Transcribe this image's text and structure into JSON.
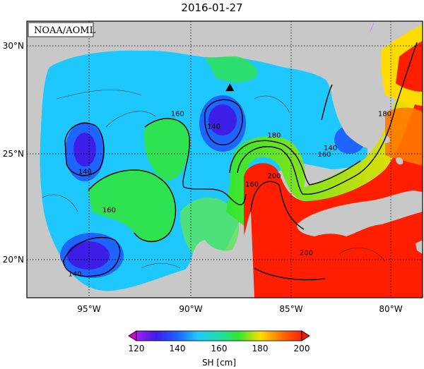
{
  "title": "2016-01-27",
  "credit": "NOAA/AOML",
  "map": {
    "type": "sea-surface-height",
    "lon_range": [
      -98,
      -78
    ],
    "lat_range": [
      18,
      31
    ],
    "x_ticks": [
      "95°W",
      "90°W",
      "85°W",
      "80°W"
    ],
    "y_ticks": [
      "30°N",
      "25°N",
      "20°N"
    ],
    "grid": "dotted",
    "land_color": "#c8c8c8",
    "contour_labels": [
      {
        "text": "160",
        "lon": -90.6,
        "lat": 26.8
      },
      {
        "text": "140",
        "lon": -88.8,
        "lat": 26.2
      },
      {
        "text": "180",
        "lon": -85.8,
        "lat": 25.8
      },
      {
        "text": "140",
        "lon": -95.2,
        "lat": 24.1
      },
      {
        "text": "160",
        "lon": -86.9,
        "lat": 23.5
      },
      {
        "text": "200",
        "lon": -85.8,
        "lat": 23.9
      },
      {
        "text": "160",
        "lon": -83.3,
        "lat": 24.9
      },
      {
        "text": "140",
        "lon": -83.0,
        "lat": 25.2
      },
      {
        "text": "180",
        "lon": -80.3,
        "lat": 26.8
      },
      {
        "text": "160",
        "lon": -94.0,
        "lat": 22.3
      },
      {
        "text": "200",
        "lon": -84.2,
        "lat": 20.3
      },
      {
        "text": "140",
        "lon": -95.7,
        "lat": 19.3
      }
    ],
    "marker": {
      "shape": "triangle",
      "lon": -88.0,
      "lat": 28.1
    }
  },
  "colorbar": {
    "label": "SH [cm]",
    "ticks": [
      "120",
      "140",
      "160",
      "180",
      "200"
    ],
    "range": [
      120,
      200
    ],
    "colors": [
      "#d200d2",
      "#3c1ee6",
      "#1e64ff",
      "#1ec8ff",
      "#1edcaa",
      "#32e632",
      "#c8e61e",
      "#ffdc00",
      "#ff7800",
      "#ff1e00",
      "#e61e00"
    ]
  }
}
